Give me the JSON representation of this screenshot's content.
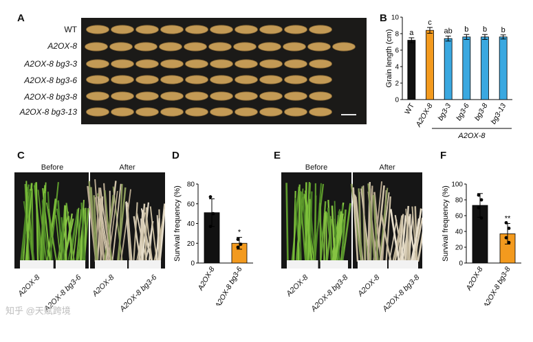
{
  "panels": {
    "A": {
      "letter": "A",
      "rows": [
        "WT",
        "A2OX-8",
        "A2OX-8 bg3-3",
        "A2OX-8 bg3-6",
        "A2OX-8 bg3-8",
        "A2OX-8 bg3-13"
      ],
      "colors": {
        "background": "#1b1a18",
        "grain": "#c39a55",
        "grain_dark": "#8a6a35",
        "scale_bar": "#e8e8e8"
      }
    },
    "B": {
      "letter": "B"
    },
    "C": {
      "letter": "C",
      "before_label": "Before",
      "after_label": "After",
      "x_labels": [
        "A2OX-8",
        "A2OX-8 bg3-6",
        "A2OX-8",
        "A2OX-8 bg3-6"
      ]
    },
    "D": {
      "letter": "D"
    },
    "E": {
      "letter": "E",
      "before_label": "Before",
      "after_label": "After",
      "x_labels": [
        "A2OX-8",
        "A2OX-8 bg3-8",
        "A2OX-8",
        "A2OX-8 bg3-8"
      ]
    },
    "F": {
      "letter": "F"
    }
  },
  "chart_data": [
    {
      "panel": "B",
      "type": "bar",
      "categories": [
        "WT",
        "A2OX-8",
        "bg3-3",
        "bg3-6",
        "bg3-8",
        "bg3-13"
      ],
      "values": [
        7.2,
        8.4,
        7.4,
        7.6,
        7.6,
        7.6
      ],
      "errors": [
        0.3,
        0.35,
        0.3,
        0.3,
        0.3,
        0.25
      ],
      "significance": [
        "a",
        "c",
        "ab",
        "b",
        "b",
        "b"
      ],
      "group_label": "A2OX-8",
      "ylabel": "Grain length (cm)",
      "ylim": [
        0,
        10
      ],
      "yticks": [
        0,
        2,
        4,
        6,
        8,
        10
      ],
      "colors": [
        "#111111",
        "#f39a1e",
        "#3aa8e0",
        "#3aa8e0",
        "#3aa8e0",
        "#3aa8e0"
      ]
    },
    {
      "panel": "D",
      "type": "bar",
      "categories": [
        "A2OX-8",
        "A2OX-8 bg3-6"
      ],
      "values": [
        51,
        20
      ],
      "errors": [
        14,
        6
      ],
      "points": [
        [
          67,
          50,
          37
        ],
        [
          24,
          19,
          16
        ]
      ],
      "significance": [
        "",
        "*"
      ],
      "ylabel": "Survival frequency (%)",
      "ylim": [
        0,
        80
      ],
      "yticks": [
        0,
        20,
        40,
        60,
        80
      ],
      "colors": [
        "#111111",
        "#f39a1e"
      ]
    },
    {
      "panel": "F",
      "type": "bar",
      "categories": [
        "A2OX-8",
        "A2OX-8 bg3-8"
      ],
      "values": [
        73,
        37
      ],
      "errors": [
        15,
        13
      ],
      "points": [
        [
          86,
          80,
          70,
          57
        ],
        [
          51,
          44,
          32,
          26
        ]
      ],
      "significance": [
        "",
        "**"
      ],
      "ylabel": "Survival frequency (%)",
      "ylim": [
        0,
        100
      ],
      "yticks": [
        0,
        20,
        40,
        60,
        80,
        100
      ],
      "colors": [
        "#111111",
        "#f39a1e"
      ]
    }
  ],
  "watermark": "知乎 @天赋跨境"
}
